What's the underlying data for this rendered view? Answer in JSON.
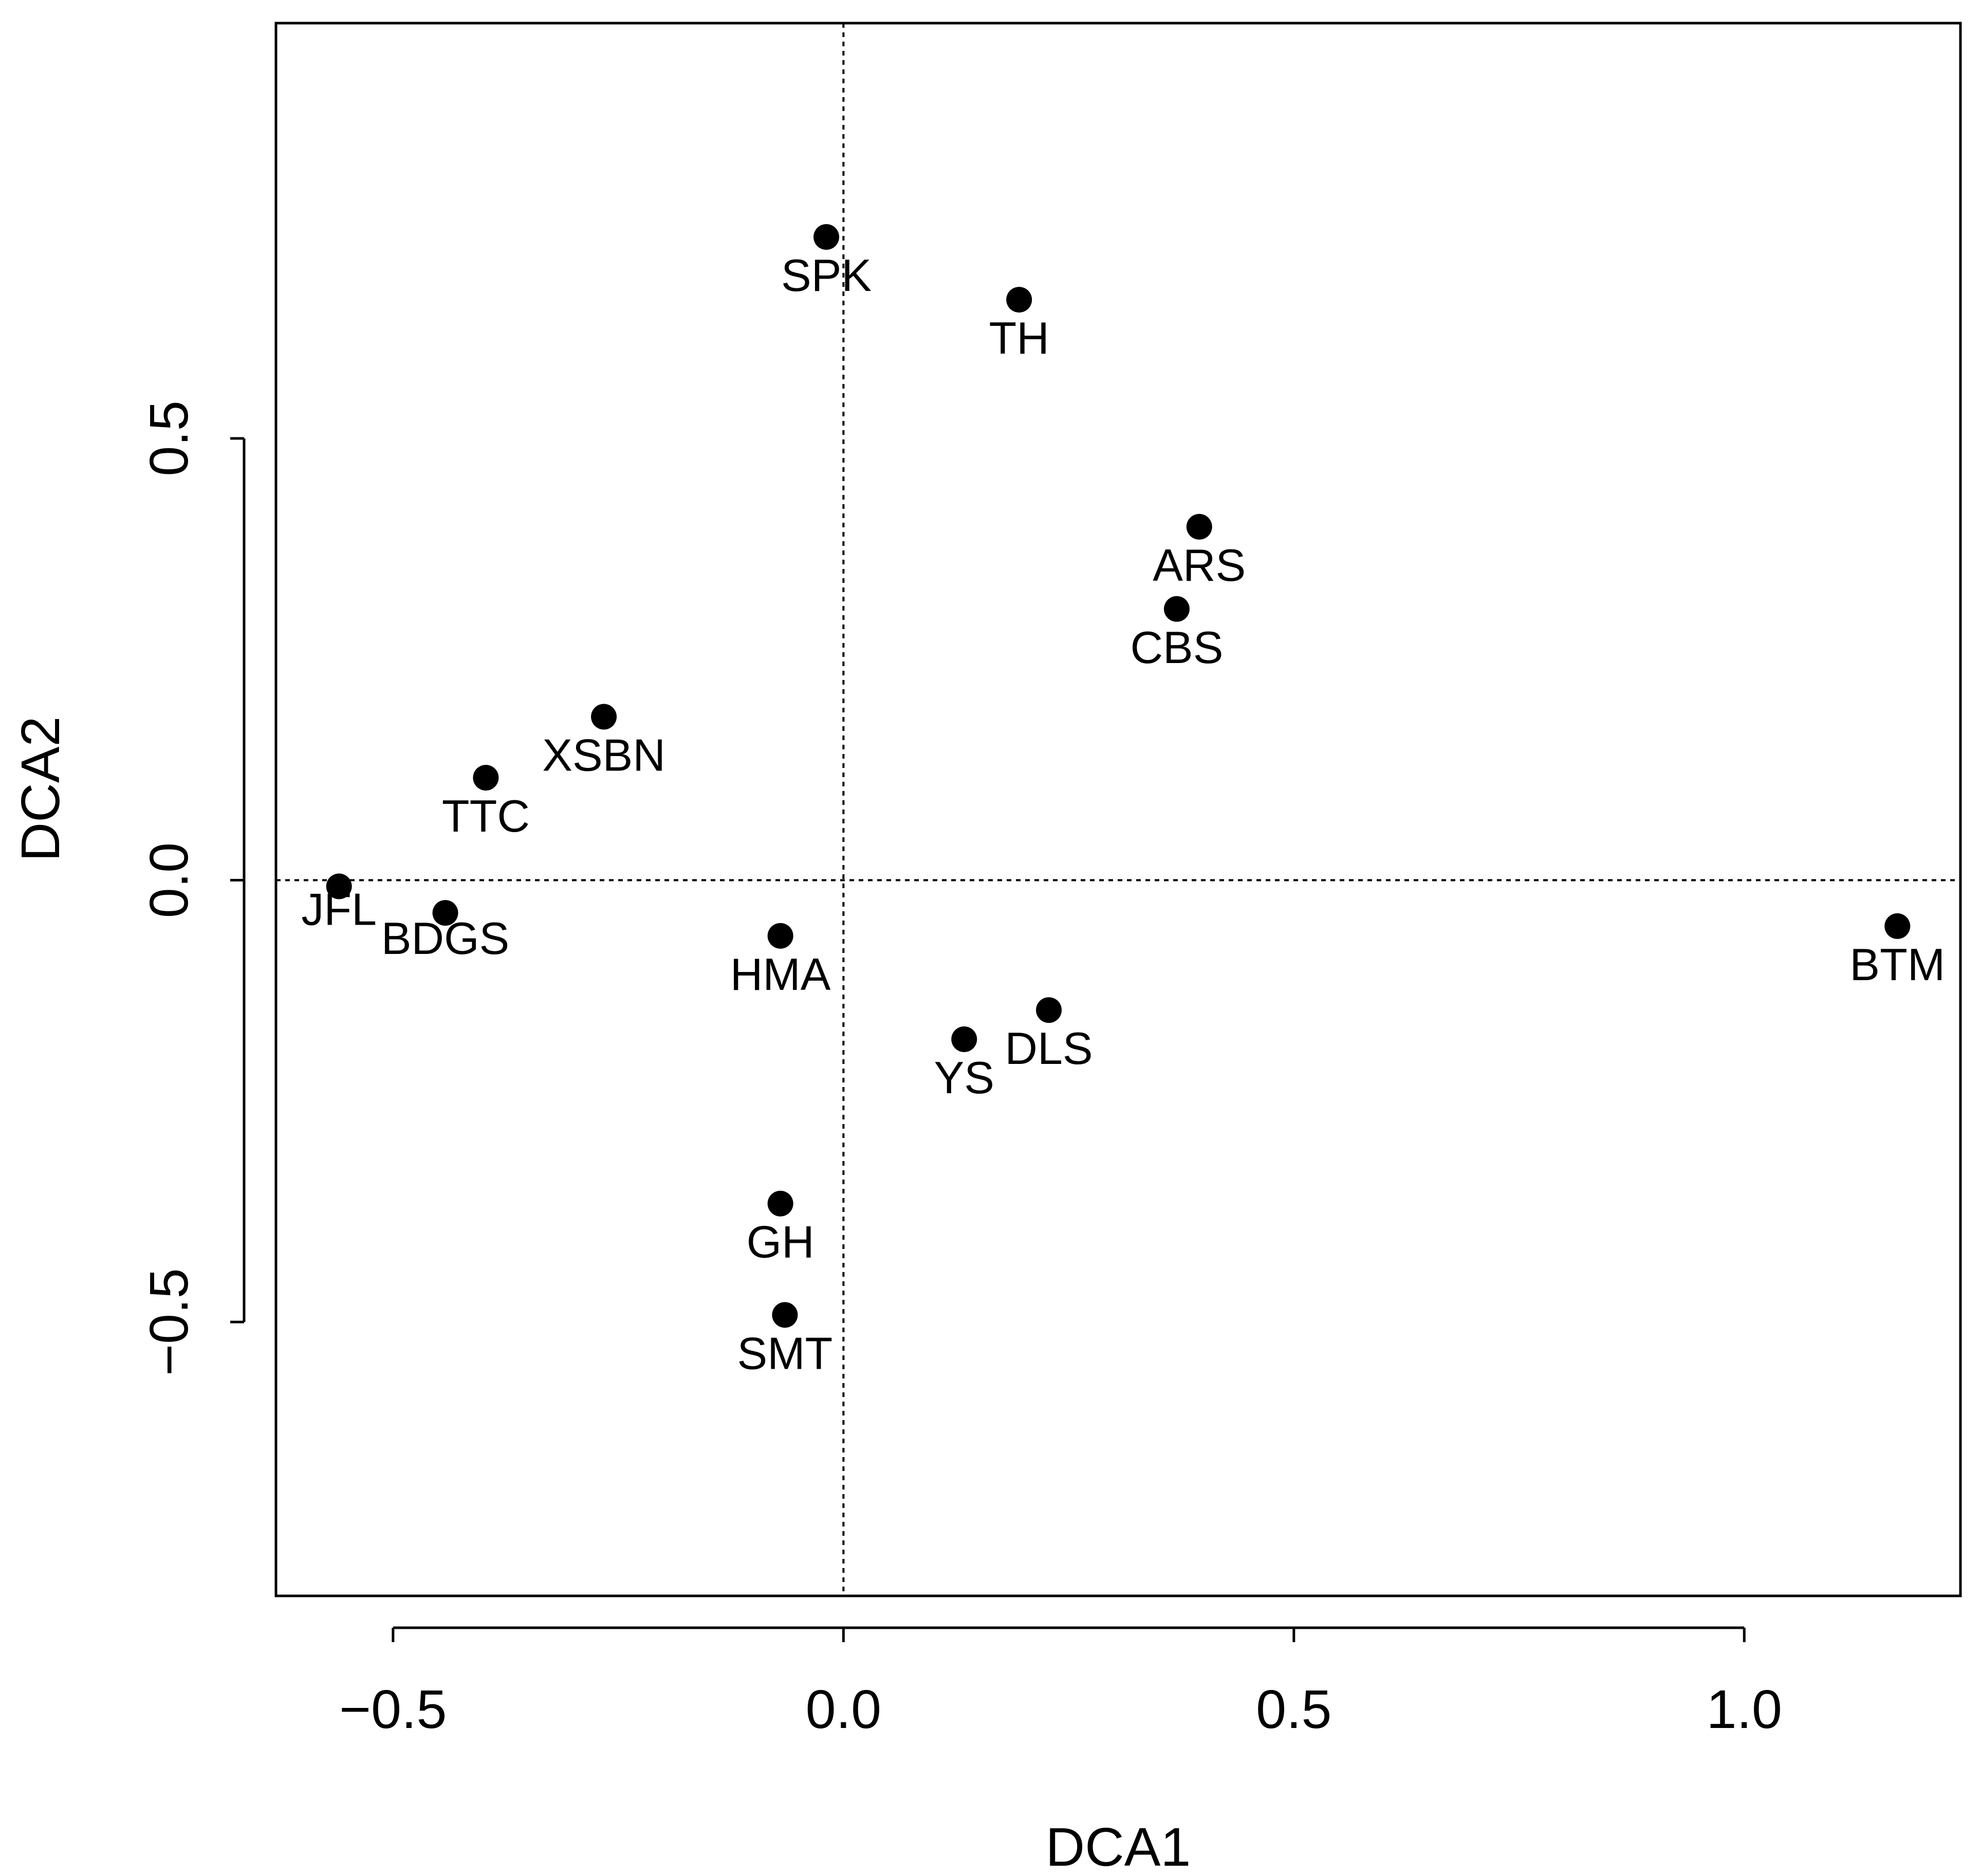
{
  "chart_data": {
    "type": "scatter",
    "title": "",
    "xlabel": "DCA1",
    "ylabel": "DCA2",
    "xlim": [
      -0.63,
      1.24
    ],
    "ylim": [
      -0.81,
      0.97
    ],
    "xticks": [
      -0.5,
      0.0,
      0.5,
      1.0
    ],
    "yticks": [
      -0.5,
      0.0,
      0.5
    ],
    "xtick_labels": [
      "−0.5",
      "0.0",
      "0.5",
      "1.0"
    ],
    "ytick_labels": [
      "−0.5",
      "0.0",
      "0.5"
    ],
    "reference_lines": {
      "x": 0,
      "y": 0,
      "style": "dotted"
    },
    "points": [
      {
        "label": "SPK",
        "x": -0.019,
        "y": 0.728
      },
      {
        "label": "TH",
        "x": 0.195,
        "y": 0.657
      },
      {
        "label": "ARS",
        "x": 0.395,
        "y": 0.4
      },
      {
        "label": "CBS",
        "x": 0.37,
        "y": 0.307
      },
      {
        "label": "XSBN",
        "x": -0.266,
        "y": 0.185
      },
      {
        "label": "TTC",
        "x": -0.397,
        "y": 0.116
      },
      {
        "label": "JFL",
        "x": -0.56,
        "y": -0.007
      },
      {
        "label": "BDGS",
        "x": -0.442,
        "y": -0.037
      },
      {
        "label": "HMA",
        "x": -0.07,
        "y": -0.063
      },
      {
        "label": "BTM",
        "x": 1.17,
        "y": -0.052
      },
      {
        "label": "DLS",
        "x": 0.228,
        "y": -0.147
      },
      {
        "label": "YS",
        "x": 0.134,
        "y": -0.18
      },
      {
        "label": "GH",
        "x": -0.07,
        "y": -0.366
      },
      {
        "label": "SMT",
        "x": -0.065,
        "y": -0.492
      }
    ],
    "colors": {
      "points": "#000000",
      "axes": "#000000",
      "background": "#ffffff"
    }
  }
}
